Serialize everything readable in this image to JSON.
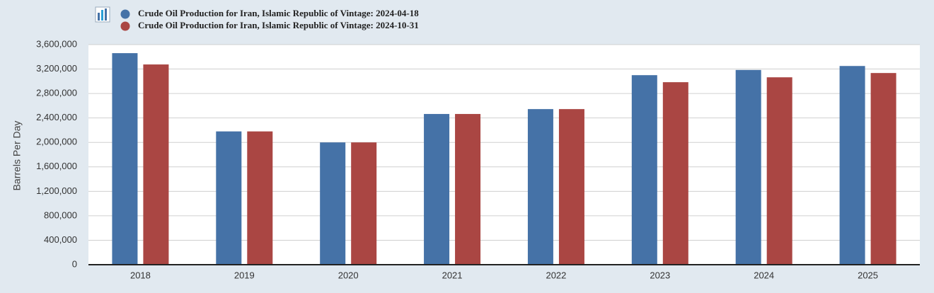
{
  "chart_data": {
    "type": "bar",
    "y_label": "Barrels Per Day",
    "categories": [
      "2018",
      "2019",
      "2020",
      "2021",
      "2022",
      "2023",
      "2024",
      "2025"
    ],
    "series": [
      {
        "name": "Crude Oil Production for Iran, Islamic Republic of Vintage: 2024-04-18",
        "color": "#4572a7",
        "values": [
          3460000,
          2180000,
          2000000,
          2465000,
          2545000,
          3100000,
          3185000,
          3250000
        ]
      },
      {
        "name": "Crude Oil Production for Iran, Islamic Republic of Vintage: 2024-10-31",
        "color": "#aa4643",
        "values": [
          3275000,
          2180000,
          2000000,
          2465000,
          2545000,
          2985000,
          3065000,
          3135000
        ]
      }
    ],
    "ylim": [
      0,
      3600000
    ],
    "yticks": [
      0,
      {
        "value": 400000,
        "label": "400,000"
      },
      {
        "value": 800000,
        "label": "800,000"
      },
      {
        "value": 1200000,
        "label": "1,200,000"
      },
      {
        "value": 1600000,
        "label": "1,600,000"
      },
      {
        "value": 2000000,
        "label": "2,000,000"
      },
      {
        "value": 2400000,
        "label": "2,400,000"
      },
      {
        "value": 2800000,
        "label": "2,800,000"
      },
      {
        "value": 3200000,
        "label": "3,200,000"
      },
      {
        "value": 3600000,
        "label": "3,600,000"
      }
    ],
    "grid": true
  }
}
